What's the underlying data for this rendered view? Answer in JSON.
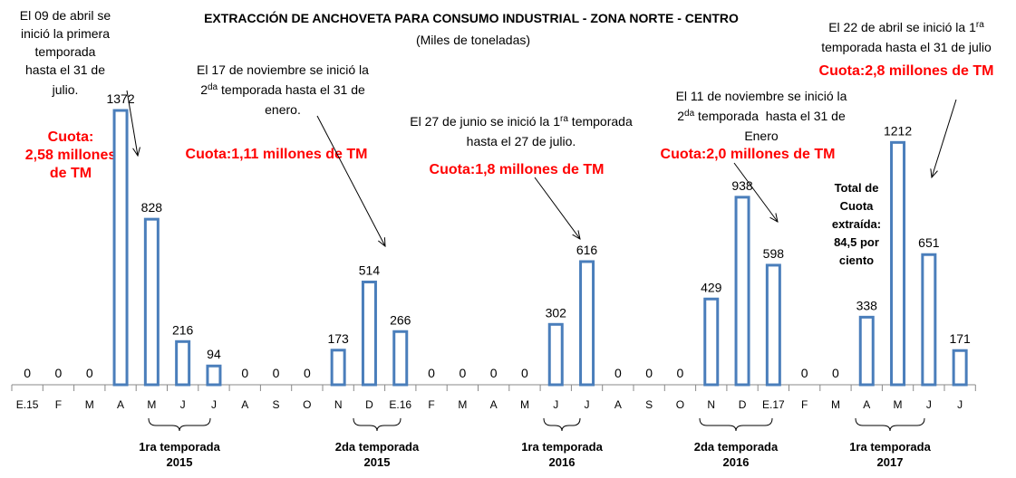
{
  "chart_data": {
    "type": "bar",
    "title": "EXTRACCIÓN DE ANCHOVETA PARA CONSUMO INDUSTRIAL - ZONA NORTE - CENTRO",
    "subtitle": "(Miles de toneladas)",
    "categories": [
      "E.15",
      "F",
      "M",
      "A",
      "M",
      "J",
      "J",
      "A",
      "S",
      "O",
      "N",
      "D",
      "E.16",
      "F",
      "M",
      "A",
      "M",
      "J",
      "J",
      "A",
      "S",
      "O",
      "N",
      "D",
      "E.17",
      "F",
      "M",
      "A",
      "M",
      "J",
      "J"
    ],
    "values": [
      0,
      0,
      0,
      1372,
      828,
      216,
      94,
      0,
      0,
      0,
      173,
      514,
      266,
      0,
      0,
      0,
      0,
      302,
      616,
      0,
      0,
      0,
      429,
      938,
      598,
      0,
      0,
      338,
      1212,
      651,
      171
    ],
    "color": "#4a7ebb",
    "annotations": {
      "a1": [
        "El 09 de abril se",
        "inició la primera",
        "temporada",
        "hasta el 31 de",
        "julio."
      ],
      "q1": [
        "Cuota:",
        "2,58 millones",
        "de TM"
      ],
      "a2": [
        "El 17 de noviembre se inició la",
        [
          "2",
          "da",
          " temporada hasta el 31 de"
        ],
        "enero."
      ],
      "q2": "Cuota:1,11 millones de TM",
      "a3": [
        [
          "El 27 de junio se inició la 1",
          "ra",
          " temporada"
        ],
        "hasta el 27 de julio."
      ],
      "q3": "Cuota:1,8 millones de TM",
      "a4": [
        "El 11 de noviembre se inició la",
        [
          "2",
          "da",
          " temporada  hasta el 31 de"
        ],
        "Enero"
      ],
      "q4": "Cuota:2,0 millones de TM",
      "a5": [
        [
          "El 22 de abril se inició la 1",
          "ra",
          ""
        ],
        "temporada hasta el 31 de julio"
      ],
      "q5": "Cuota:2,8 millones de TM",
      "total": [
        "Total de",
        "Cuota",
        "extraída:",
        "84,5 por",
        "ciento"
      ]
    },
    "seasons": [
      [
        "1ra temporada",
        "2015"
      ],
      [
        "2da temporada",
        "2015"
      ],
      [
        "1ra temporada",
        "2016"
      ],
      [
        "2da temporada",
        "2016"
      ],
      [
        "1ra temporada",
        "2017"
      ]
    ]
  }
}
